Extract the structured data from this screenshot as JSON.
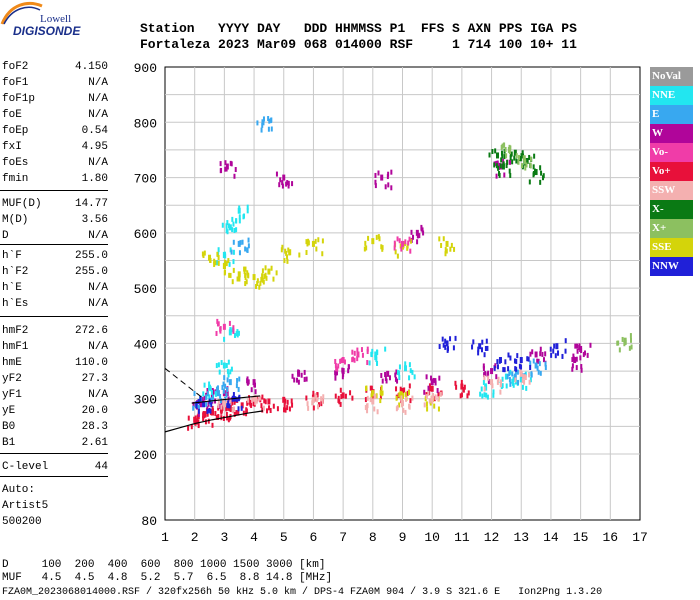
{
  "logo": {
    "line1": "Lowell",
    "line2": "DIGISONDE"
  },
  "header": {
    "row1": "Station   YYYY DAY   DDD HHMMSS P1  FFS S AXN PPS IGA PS",
    "row2": "Fortaleza 2023 Mar09 068 014000 RSF     1 714 100 10+ 11"
  },
  "params_group1": [
    {
      "name": "foF2",
      "value": "4.150"
    },
    {
      "name": "foF1",
      "value": "N/A"
    },
    {
      "name": "foF1p",
      "value": "N/A"
    },
    {
      "name": "foE",
      "value": "N/A"
    },
    {
      "name": "foEp",
      "value": "0.54"
    },
    {
      "name": "fxI",
      "value": "4.95"
    },
    {
      "name": "foEs",
      "value": "N/A"
    },
    {
      "name": "fmin",
      "value": "1.80"
    }
  ],
  "params_group2": [
    {
      "name": "MUF(D)",
      "value": "14.77"
    },
    {
      "name": "M(D)",
      "value": "3.56"
    },
    {
      "name": "D",
      "value": "N/A"
    }
  ],
  "params_group3": [
    {
      "name": "h`F",
      "value": "255.0"
    },
    {
      "name": "h`F2",
      "value": "255.0"
    },
    {
      "name": "h`E",
      "value": "N/A"
    },
    {
      "name": "h`Es",
      "value": "N/A"
    }
  ],
  "params_group4": [
    {
      "name": "hmF2",
      "value": "272.6"
    },
    {
      "name": "hmF1",
      "value": "N/A"
    },
    {
      "name": "hmE",
      "value": "110.0"
    },
    {
      "name": "yF2",
      "value": "27.3"
    },
    {
      "name": "yF1",
      "value": "N/A"
    },
    {
      "name": "yE",
      "value": "20.0"
    },
    {
      "name": "B0",
      "value": "28.3"
    },
    {
      "name": "B1",
      "value": "2.61"
    }
  ],
  "params_group5": [
    {
      "name": "C-level",
      "value": "44"
    }
  ],
  "auto_info": [
    "Auto:",
    "Artist5",
    "500200"
  ],
  "footer": {
    "d_row": "D     100  200  400  600  800 1000 1500 3000 [km]",
    "muf_row": "MUF   4.5  4.5  4.8  5.2  5.7  6.5  8.8 14.8 [MHz]",
    "file_row": "FZA0M_2023068014000.RSF / 320fx256h 50 kHz 5.0 km / DPS-4 FZA0M 904 / 3.9 S 321.6 E   Ion2Png 1.3.20"
  },
  "legend": [
    {
      "label": "NoVal",
      "color": "#9a9a9a"
    },
    {
      "label": "NNE",
      "color": "#22e6f0"
    },
    {
      "label": "E",
      "color": "#38a8f0"
    },
    {
      "label": "W",
      "color": "#b0059a"
    },
    {
      "label": "Vo-",
      "color": "#f03ca8"
    },
    {
      "label": "Vo+",
      "color": "#e8103a"
    },
    {
      "label": "SSW",
      "color": "#f4b0b0"
    },
    {
      "label": "X-",
      "color": "#0a7a14"
    },
    {
      "label": "X+",
      "color": "#8cc060"
    },
    {
      "label": "SSE",
      "color": "#d4d40a"
    },
    {
      "label": "NNW",
      "color": "#2020d8"
    }
  ],
  "chart_data": {
    "type": "scatter",
    "title": "",
    "xlabel": "",
    "ylabel": "",
    "xlim": [
      1,
      17
    ],
    "ylim": [
      80,
      900
    ],
    "x_ticks": [
      "1",
      "2",
      "3",
      "4",
      "5",
      "6",
      "7",
      "8",
      "9",
      "10",
      "11",
      "12",
      "13",
      "14",
      "15",
      "16",
      "17"
    ],
    "y_ticks": [
      "80",
      "200",
      "300",
      "400",
      "500",
      "600",
      "700",
      "800",
      "900"
    ],
    "grid": true,
    "series": [
      {
        "name": "Vo+",
        "color": "#e8103a",
        "points": [
          [
            2.0,
            262
          ],
          [
            2.3,
            270
          ],
          [
            2.6,
            275
          ],
          [
            2.9,
            280
          ],
          [
            3.2,
            283
          ],
          [
            3.6,
            288
          ],
          [
            4.0,
            292
          ],
          [
            4.5,
            295
          ],
          [
            5.0,
            298
          ],
          [
            6.0,
            302
          ],
          [
            7.0,
            306
          ],
          [
            8.0,
            310
          ],
          [
            9.0,
            314
          ],
          [
            10.0,
            318
          ],
          [
            11.0,
            322
          ]
        ]
      },
      {
        "name": "W",
        "color": "#b0059a",
        "points": [
          [
            2.2,
            290
          ],
          [
            2.6,
            305
          ],
          [
            3.0,
            310
          ],
          [
            4.0,
            330
          ],
          [
            5.5,
            345
          ],
          [
            7.0,
            350
          ],
          [
            8.5,
            345
          ],
          [
            10.0,
            330
          ],
          [
            12.0,
            350
          ],
          [
            13.5,
            380
          ],
          [
            14.8,
            370
          ],
          [
            15.0,
            390
          ],
          [
            3.1,
            720
          ],
          [
            5.0,
            700
          ],
          [
            8.3,
            700
          ],
          [
            9.5,
            600
          ],
          [
            12.3,
            720
          ]
        ]
      },
      {
        "name": "NNE",
        "color": "#22e6f0",
        "points": [
          [
            2.5,
            320
          ],
          [
            3.0,
            360
          ],
          [
            3.2,
            420
          ],
          [
            3.0,
            560
          ],
          [
            3.2,
            610
          ],
          [
            3.5,
            640
          ],
          [
            8.1,
            380
          ],
          [
            9.1,
            355
          ],
          [
            11.8,
            320
          ],
          [
            12.5,
            340
          ],
          [
            13.0,
            335
          ]
        ]
      },
      {
        "name": "E",
        "color": "#38a8f0",
        "points": [
          [
            2.2,
            300
          ],
          [
            2.8,
            310
          ],
          [
            3.2,
            330
          ],
          [
            3.5,
            580
          ],
          [
            4.3,
            800
          ],
          [
            12.8,
            340
          ],
          [
            13.5,
            360
          ]
        ]
      },
      {
        "name": "SSE",
        "color": "#d4d40a",
        "points": [
          [
            2.5,
            555
          ],
          [
            3.0,
            540
          ],
          [
            3.5,
            525
          ],
          [
            4.0,
            520
          ],
          [
            4.5,
            530
          ],
          [
            5.2,
            565
          ],
          [
            6.0,
            580
          ],
          [
            8.0,
            585
          ],
          [
            9.0,
            575
          ],
          [
            10.5,
            580
          ],
          [
            8.0,
            310
          ],
          [
            9.0,
            305
          ],
          [
            10.0,
            300
          ]
        ]
      },
      {
        "name": "SSW",
        "color": "#f4b0b0",
        "points": [
          [
            3.0,
            290
          ],
          [
            4.0,
            300
          ],
          [
            6.0,
            298
          ],
          [
            8.0,
            295
          ],
          [
            9.0,
            292
          ],
          [
            10.0,
            300
          ],
          [
            12.0,
            330
          ],
          [
            13.0,
            345
          ]
        ]
      },
      {
        "name": "NNW",
        "color": "#2020d8",
        "points": [
          [
            2.3,
            290
          ],
          [
            3.3,
            300
          ],
          [
            10.5,
            400
          ],
          [
            11.6,
            395
          ],
          [
            12.3,
            370
          ],
          [
            13.0,
            370
          ],
          [
            14.2,
            395
          ]
        ]
      },
      {
        "name": "X-",
        "color": "#0a7a14",
        "points": [
          [
            12.2,
            740
          ],
          [
            12.4,
            720
          ],
          [
            12.8,
            745
          ],
          [
            13.2,
            730
          ],
          [
            13.5,
            710
          ]
        ]
      },
      {
        "name": "X+",
        "color": "#8cc060",
        "points": [
          [
            12.6,
            750
          ],
          [
            13.1,
            735
          ],
          [
            16.5,
            405
          ]
        ]
      },
      {
        "name": "Vo-",
        "color": "#f03ca8",
        "points": [
          [
            3.0,
            430
          ],
          [
            7.0,
            370
          ],
          [
            7.5,
            380
          ],
          [
            9.0,
            580
          ]
        ]
      }
    ]
  }
}
